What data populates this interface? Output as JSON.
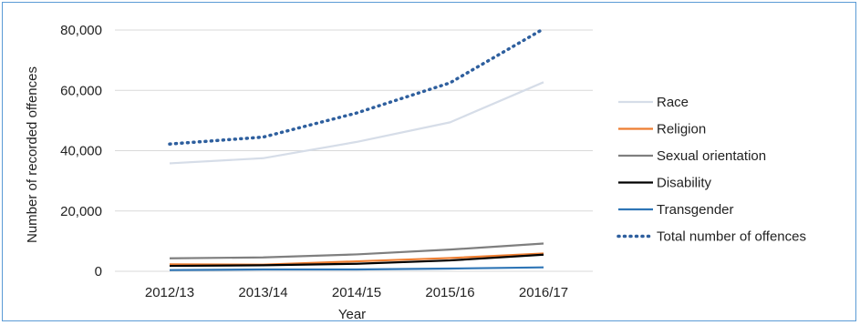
{
  "chart_data": {
    "type": "line",
    "title": "",
    "xlabel": "Year",
    "ylabel": "Number of recorded offences",
    "categories": [
      "2012/13",
      "2013/14",
      "2014/15",
      "2015/16",
      "2016/17"
    ],
    "ylim": [
      0,
      80000
    ],
    "yticks": [
      0,
      20000,
      40000,
      60000,
      80000
    ],
    "ytick_labels": [
      "0",
      "20,000",
      "40,000",
      "60,000",
      "80,000"
    ],
    "grid": "horizontal",
    "legend_position": "right",
    "series": [
      {
        "name": "Race",
        "color": "#d6dde8",
        "style": "solid",
        "values": [
          35800,
          37500,
          42900,
          49400,
          62700
        ]
      },
      {
        "name": "Religion",
        "color": "#ed7d31",
        "style": "solid",
        "values": [
          2300,
          2200,
          3300,
          4400,
          5900
        ]
      },
      {
        "name": "Sexual orientation",
        "color": "#7f7f7f",
        "style": "solid",
        "values": [
          4300,
          4600,
          5600,
          7200,
          9200
        ]
      },
      {
        "name": "Disability",
        "color": "#000000",
        "style": "solid",
        "values": [
          1800,
          2000,
          2500,
          3600,
          5500
        ]
      },
      {
        "name": "Transgender",
        "color": "#2e75b6",
        "style": "solid",
        "values": [
          400,
          600,
          600,
          900,
          1300
        ]
      },
      {
        "name": "Total number of offences",
        "color": "#2e5f9e",
        "style": "dotted",
        "values": [
          42200,
          44500,
          52500,
          62500,
          80400
        ]
      }
    ]
  }
}
